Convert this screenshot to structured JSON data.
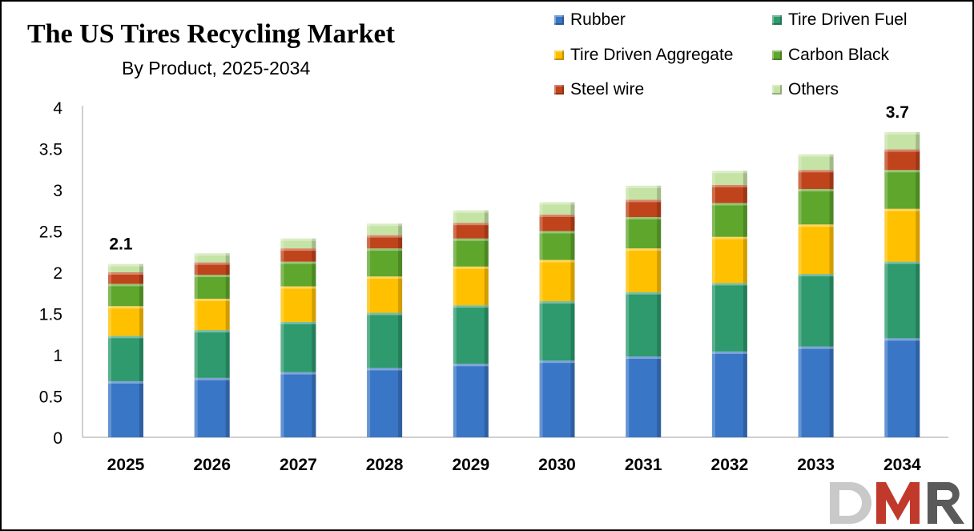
{
  "chart_data": {
    "type": "bar",
    "stacked": true,
    "title": "The US Tires Recycling Market",
    "subtitle": "By Product, 2025-2034",
    "categories": [
      "2025",
      "2026",
      "2027",
      "2028",
      "2029",
      "2030",
      "2031",
      "2032",
      "2033",
      "2034"
    ],
    "series": [
      {
        "name": "Rubber",
        "color": "#3a76c6",
        "values": [
          0.68,
          0.72,
          0.79,
          0.84,
          0.89,
          0.93,
          0.98,
          1.04,
          1.1,
          1.2
        ]
      },
      {
        "name": "Tire Driven Fuel",
        "color": "#2e9a6e",
        "values": [
          0.55,
          0.58,
          0.61,
          0.67,
          0.71,
          0.72,
          0.78,
          0.83,
          0.88,
          0.93
        ]
      },
      {
        "name": "Tire Driven Aggregate",
        "color": "#ffc000",
        "values": [
          0.36,
          0.38,
          0.43,
          0.44,
          0.47,
          0.5,
          0.53,
          0.56,
          0.6,
          0.64
        ]
      },
      {
        "name": "Carbon Black",
        "color": "#5fa62c",
        "values": [
          0.27,
          0.29,
          0.3,
          0.34,
          0.34,
          0.35,
          0.38,
          0.41,
          0.43,
          0.47
        ]
      },
      {
        "name": "Steel wire",
        "color": "#c0441b",
        "values": [
          0.14,
          0.15,
          0.16,
          0.16,
          0.19,
          0.2,
          0.21,
          0.22,
          0.23,
          0.25
        ]
      },
      {
        "name": "Others",
        "color": "#c5e3a5",
        "values": [
          0.1,
          0.11,
          0.12,
          0.14,
          0.15,
          0.15,
          0.17,
          0.17,
          0.19,
          0.21
        ]
      }
    ],
    "annotations": [
      {
        "category": "2025",
        "text": "2.1"
      },
      {
        "category": "2034",
        "text": "3.7"
      }
    ],
    "ylim": [
      0,
      4
    ],
    "yticks": [
      "0",
      "0.5",
      "1",
      "1.5",
      "2",
      "2.5",
      "3",
      "3.5",
      "4"
    ],
    "grid": false,
    "legend_position": "top-right"
  },
  "logo": {
    "text": "DMR",
    "colors": [
      "#c9c9c9",
      "#c0392b",
      "#5a5a5a"
    ]
  }
}
